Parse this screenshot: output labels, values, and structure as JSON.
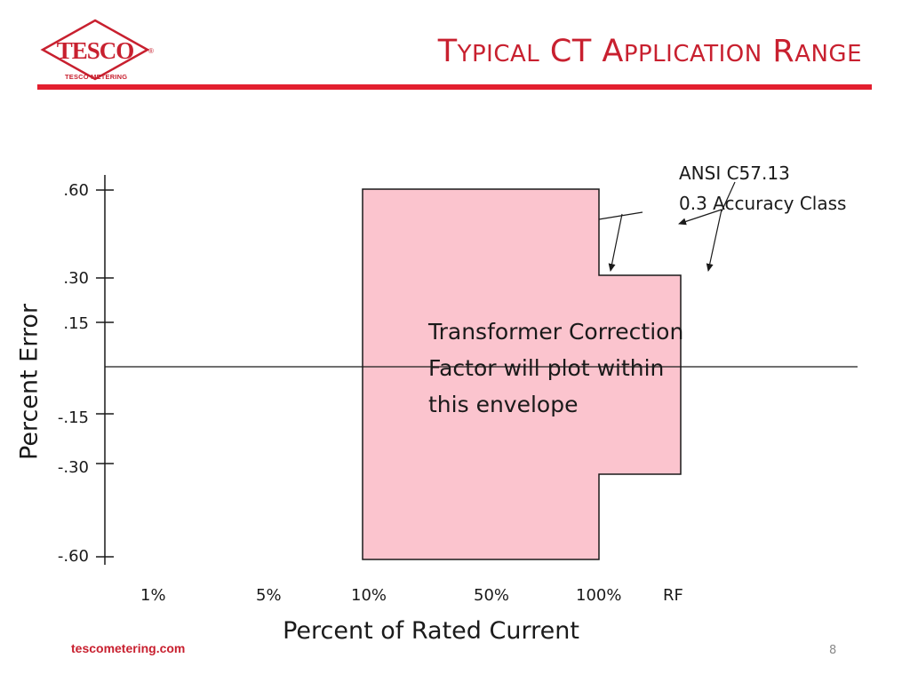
{
  "header": {
    "title_parts": [
      {
        "cap": "T",
        "rest": "YPICAL"
      },
      {
        "cap": "CT",
        "rest": ""
      },
      {
        "cap": "A",
        "rest": "PPLICATION"
      },
      {
        "cap": "R",
        "rest": "ANGE"
      }
    ],
    "logo_text": "TESCO",
    "logo_registered": "®",
    "logo_caption": "TESCO METERING"
  },
  "chart_data": {
    "type": "diagram",
    "ylabel": "Percent Error",
    "xlabel": "Percent of Rated Current",
    "y_ticks": [
      ".60",
      ".30",
      ".15",
      "-.15",
      "-.30",
      "-.60"
    ],
    "x_ticks": [
      "1%",
      "5%",
      "10%",
      "50%",
      "100%",
      "RF"
    ],
    "envelope": [
      {
        "x_from": "10%",
        "x_to": "100%",
        "y_max": ".60",
        "y_min": "-.60"
      },
      {
        "x_from": "100%",
        "x_to": "RF",
        "y_max": ".30",
        "y_min": "-.30"
      }
    ],
    "envelope_text": [
      "Transformer Correction",
      "Factor will plot within",
      "this envelope"
    ],
    "annotation": [
      "ANSI C57.13",
      "0.3 Accuracy Class"
    ],
    "fill_color": "#fbc4ce",
    "line_color": "#1a1a1a"
  },
  "footer": {
    "url": "tescometering.com",
    "page": "8"
  },
  "colors": {
    "brand": "#c8202f",
    "rule": "#e31f2f"
  }
}
